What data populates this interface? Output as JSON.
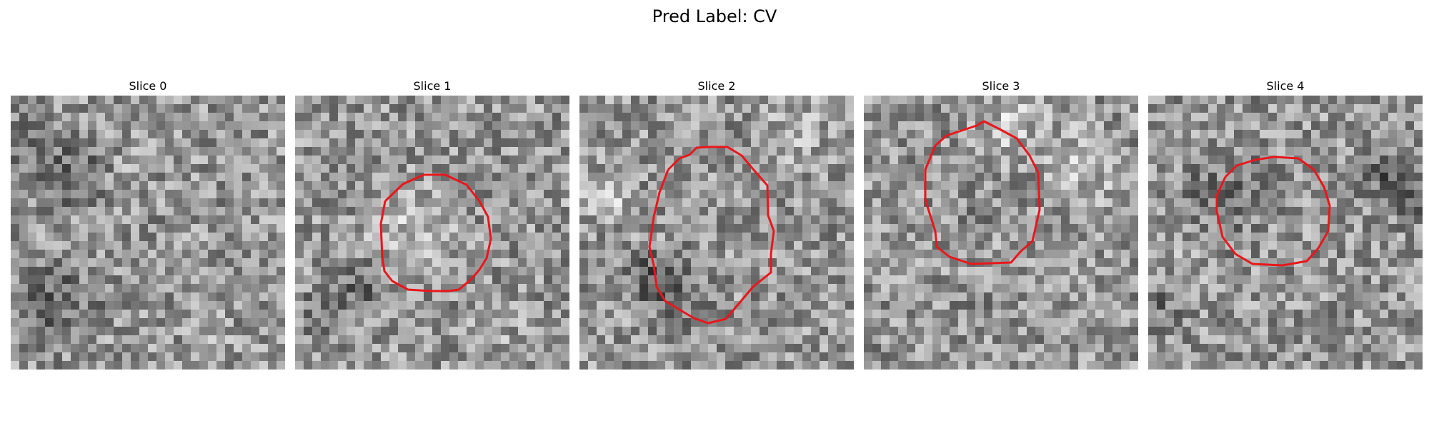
{
  "figure": {
    "title": "Pred Label: CV"
  },
  "slices": [
    {
      "title": "Slice 0",
      "has_contour": false,
      "seed": 11
    },
    {
      "title": "Slice 1",
      "has_contour": true,
      "seed": 23
    },
    {
      "title": "Slice 2",
      "has_contour": true,
      "seed": 37
    },
    {
      "title": "Slice 3",
      "has_contour": true,
      "seed": 51
    },
    {
      "title": "Slice 4",
      "has_contour": true,
      "seed": 67
    }
  ],
  "colors": {
    "contour": "#e8171c",
    "background": "#ffffff"
  },
  "image_colormap": "grayscale"
}
